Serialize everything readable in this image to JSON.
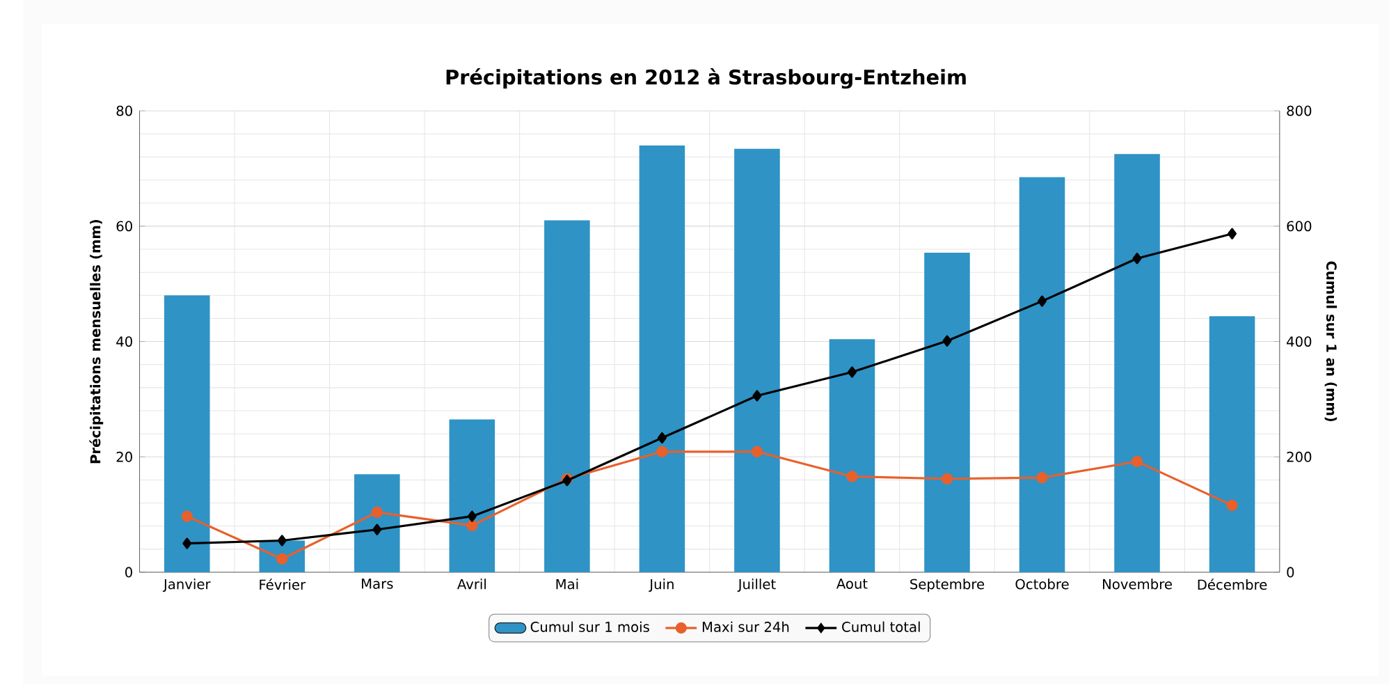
{
  "chart_data": {
    "type": "bar",
    "title": "Précipitations en 2012 à Strasbourg-Entzheim",
    "categories": [
      "Janvier",
      "Février",
      "Mars",
      "Avril",
      "Mai",
      "Juin",
      "Juillet",
      "Aout",
      "Septembre",
      "Octobre",
      "Novembre",
      "Décembre"
    ],
    "series": [
      {
        "name": "Cumul sur 1 mois",
        "color": "#2f93c6",
        "values": [
          48,
          5.5,
          17,
          26.5,
          61,
          74,
          73.4,
          40.4,
          55.4,
          68.5,
          72.5,
          44.4
        ]
      },
      {
        "name": "Maxi sur 24h",
        "type": "line",
        "color": "#e8602c",
        "marker": "circle",
        "values": [
          9.7,
          2.3,
          10.4,
          8.1,
          16.2,
          20.9,
          20.9,
          16.6,
          16.2,
          16.4,
          19.2,
          11.6
        ]
      },
      {
        "name": "Cumul total",
        "type": "line",
        "axis": "y2",
        "color": "#000000",
        "marker": "diamond",
        "values": [
          50,
          55,
          74,
          97,
          159,
          233,
          306,
          347,
          401,
          470,
          544,
          587
        ]
      }
    ],
    "ylabel": "Précipitations mensuelles (mm)",
    "y2label": "Cumul sur 1 an (mm)",
    "ylim": [
      0,
      80
    ],
    "yticks": [
      0,
      20,
      40,
      60,
      80
    ],
    "y2lim": [
      0,
      800
    ],
    "y2ticks": [
      0,
      200,
      400,
      600,
      800
    ],
    "grid": true,
    "legend": "bottom"
  }
}
